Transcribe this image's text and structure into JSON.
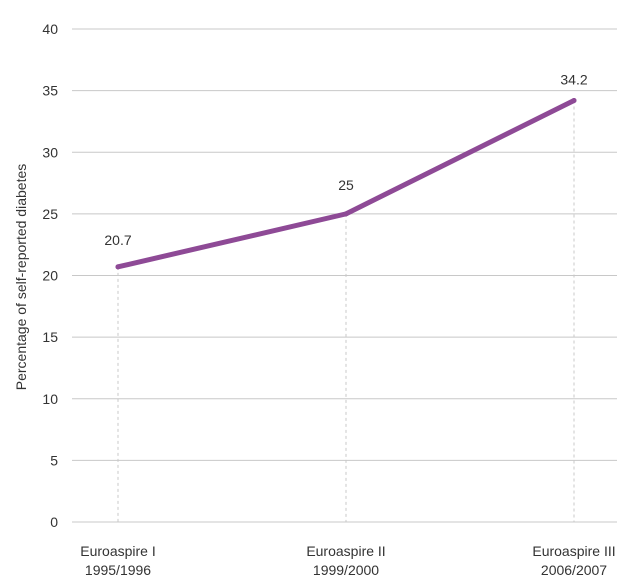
{
  "chart_data": {
    "type": "line",
    "title": "",
    "xlabel": "",
    "ylabel": "Percentage of self-reported diabetes",
    "ylim": [
      0,
      40
    ],
    "yticks": [
      0,
      5,
      10,
      15,
      20,
      25,
      30,
      35,
      40
    ],
    "grid": true,
    "categories": [
      {
        "name": "Euroaspire I",
        "period": "1995/1996"
      },
      {
        "name": "Euroaspire II",
        "period": "1999/2000"
      },
      {
        "name": "Euroaspire III",
        "period": "2006/2007"
      }
    ],
    "series": [
      {
        "values": [
          20.7,
          25,
          34.2
        ],
        "color": "#8e4a96"
      }
    ],
    "data_labels": [
      "20.7",
      "25",
      "34.2"
    ]
  }
}
